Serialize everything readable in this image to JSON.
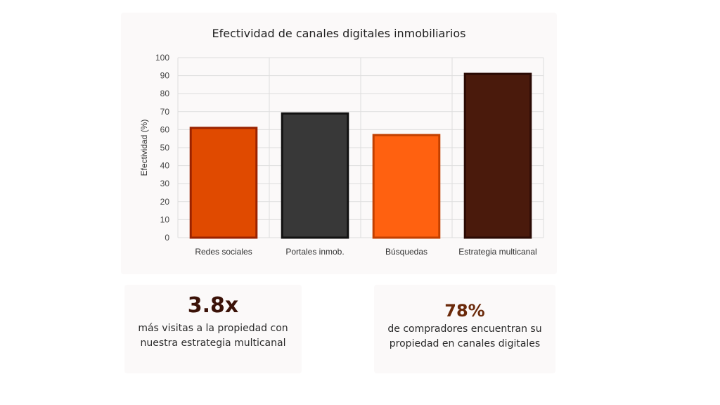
{
  "chart_data": {
    "type": "bar",
    "title": "Efectividad de canales digitales inmobiliarios",
    "xlabel": "",
    "ylabel": "Efectividad (%)",
    "categories": [
      "Redes sociales",
      "Portales inmob.",
      "Búsquedas",
      "Estrategia multicanal"
    ],
    "values": [
      61,
      69,
      57,
      91
    ],
    "ylim": [
      0,
      100
    ],
    "yticks": [
      0,
      10,
      20,
      30,
      40,
      50,
      60,
      70,
      80,
      90,
      100
    ],
    "grid": true,
    "bar_colors": [
      "#e04a00",
      "#383838",
      "#ff6110",
      "#4a1a0c"
    ],
    "bar_border_colors": [
      "#9a2200",
      "#111111",
      "#c23f00",
      "#2a0a04"
    ]
  },
  "stats": [
    {
      "value": "3.8x",
      "description": "más visitas a la propiedad con nuestra estrategia multicanal"
    },
    {
      "value": "78%",
      "description": "de compradores encuentran su propiedad en canales digitales"
    }
  ]
}
